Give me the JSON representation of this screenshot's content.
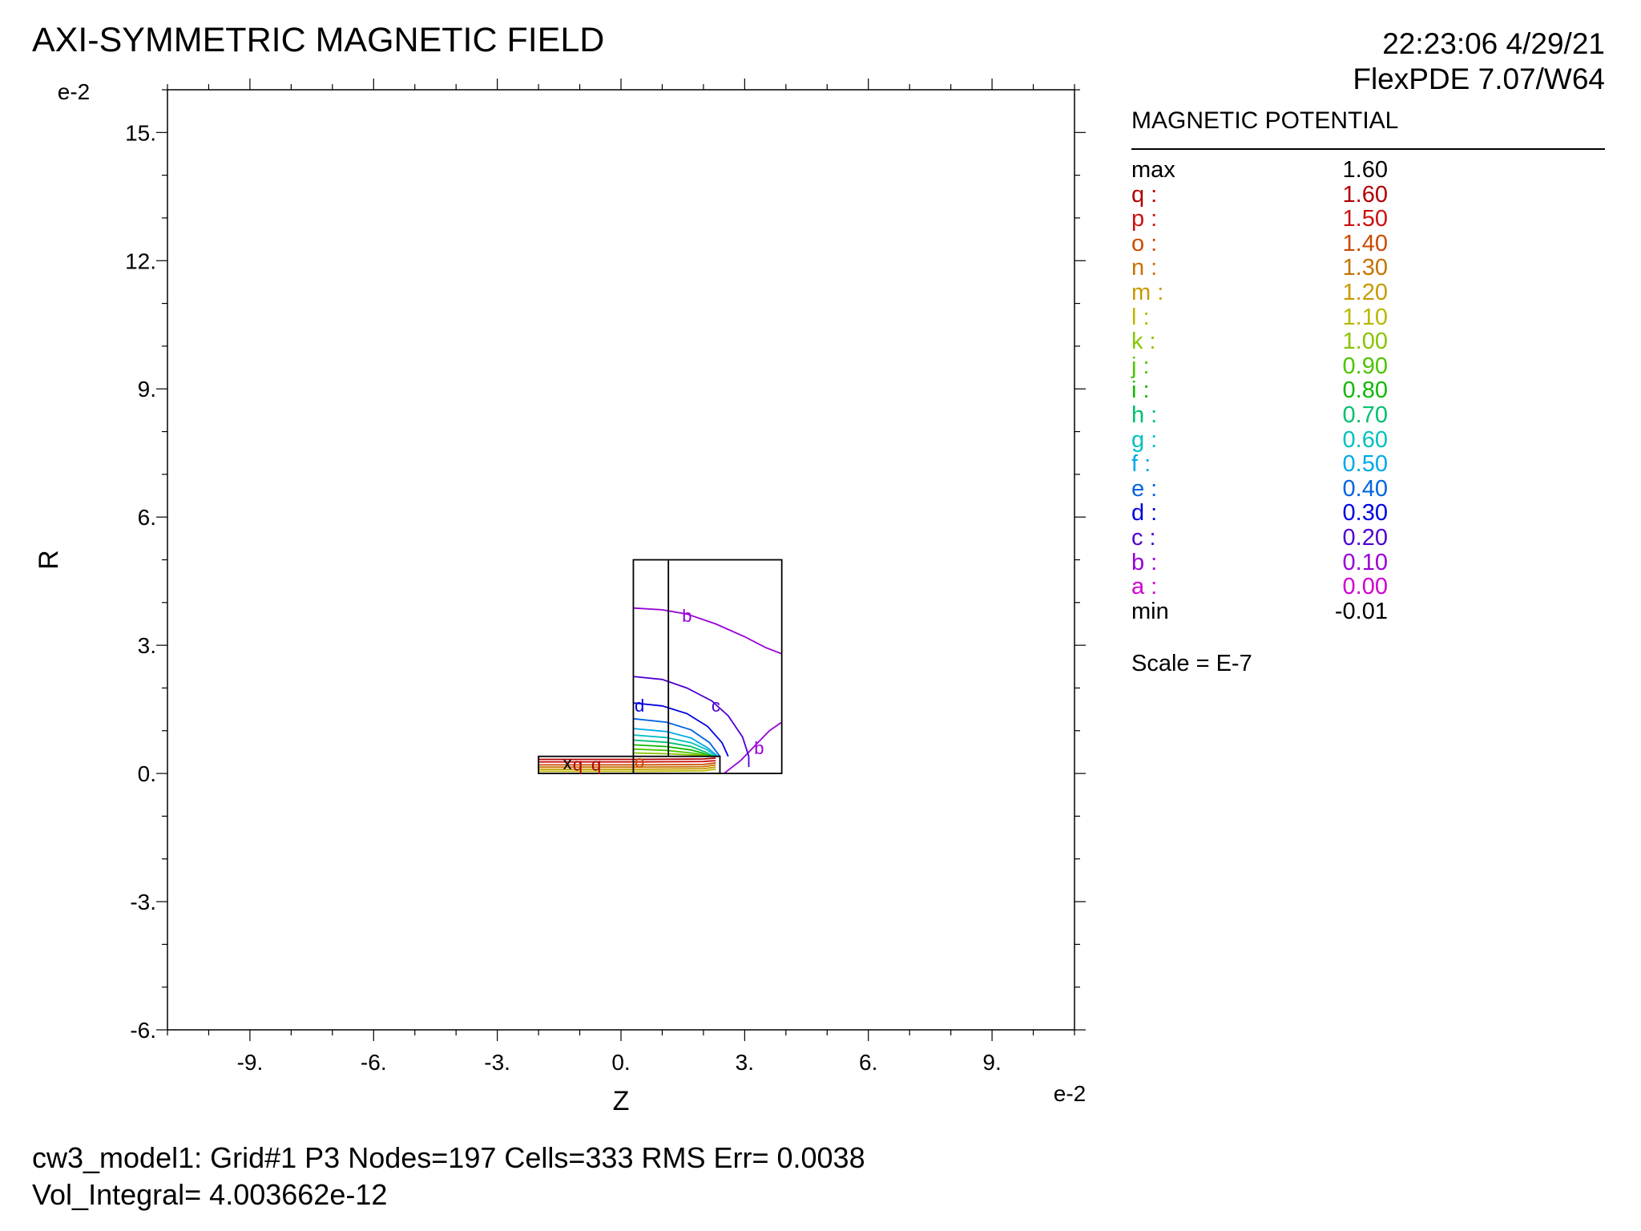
{
  "header": {
    "title": "AXI-SYMMETRIC MAGNETIC FIELD",
    "timestamp": "22:23:06 4/29/21",
    "software": "FlexPDE 7.07/W64"
  },
  "legend": {
    "title": "MAGNETIC POTENTIAL",
    "rows": [
      {
        "key": "max",
        "value": "1.60",
        "color": "#000000"
      },
      {
        "key": "q :",
        "value": "1.60",
        "color": "#b00000"
      },
      {
        "key": "p :",
        "value": "1.50",
        "color": "#cc1010"
      },
      {
        "key": "o :",
        "value": "1.40",
        "color": "#cc4a00"
      },
      {
        "key": "n :",
        "value": "1.30",
        "color": "#c67200"
      },
      {
        "key": "m :",
        "value": "1.20",
        "color": "#c89a00"
      },
      {
        "key": "l :",
        "value": "1.10",
        "color": "#b8b800"
      },
      {
        "key": "k :",
        "value": "1.00",
        "color": "#88c400"
      },
      {
        "key": "j :",
        "value": "0.90",
        "color": "#4cc400"
      },
      {
        "key": "i :",
        "value": "0.80",
        "color": "#10b800"
      },
      {
        "key": "h :",
        "value": "0.70",
        "color": "#00c070"
      },
      {
        "key": "g :",
        "value": "0.60",
        "color": "#00c0c0"
      },
      {
        "key": "f :",
        "value": "0.50",
        "color": "#00a8e8"
      },
      {
        "key": "e :",
        "value": "0.40",
        "color": "#0064e0"
      },
      {
        "key": "d :",
        "value": "0.30",
        "color": "#0000e0"
      },
      {
        "key": "c :",
        "value": "0.20",
        "color": "#5000d0"
      },
      {
        "key": "b :",
        "value": "0.10",
        "color": "#9800d8"
      },
      {
        "key": "a :",
        "value": "0.00",
        "color": "#d000d0"
      },
      {
        "key": "min",
        "value": "-0.01",
        "color": "#000000"
      }
    ],
    "scale_note": "Scale = E-7"
  },
  "footer": {
    "line1": "cw3_model1:  Grid#1  P3  Nodes=197 Cells=333 RMS Err= 0.0038",
    "line2": "Vol_Integral=  4.003662e-12"
  },
  "chart_data": {
    "type": "contour",
    "xlabel": "Z",
    "ylabel": "R",
    "x_multiplier_label": "e-2",
    "y_multiplier_label": "e-2",
    "xlim": [
      -11,
      11
    ],
    "ylim": [
      -6,
      16
    ],
    "x_ticks": [
      -9,
      -6,
      -3,
      0,
      3,
      6,
      9
    ],
    "x_tick_labels": [
      "-9.",
      "-6.",
      "-3.",
      "0.",
      "3.",
      "6.",
      "9."
    ],
    "y_ticks": [
      -6,
      -3,
      0,
      3,
      6,
      9,
      12,
      15
    ],
    "y_tick_labels": [
      "-6.",
      "-3.",
      "0.",
      "3.",
      "6.",
      "9.",
      "12.",
      "15."
    ],
    "grid": false,
    "domain_boxes": [
      {
        "z": [
          0.3,
          3.9
        ],
        "r": [
          0,
          5.0
        ]
      },
      {
        "z": [
          -2.0,
          2.4
        ],
        "r": [
          0,
          0.4
        ]
      },
      {
        "z": [
          1.15,
          1.15
        ],
        "r": [
          0.4,
          5.0
        ]
      }
    ],
    "contours": [
      {
        "label": "b",
        "level": 0.1,
        "points": [
          [
            0.3,
            3.87
          ],
          [
            1.0,
            3.83
          ],
          [
            1.6,
            3.73
          ],
          [
            2.3,
            3.5
          ],
          [
            3.0,
            3.2
          ],
          [
            3.5,
            2.95
          ],
          [
            3.9,
            2.8
          ]
        ]
      },
      {
        "label": "b",
        "level": 0.1,
        "points": [
          [
            2.5,
            0
          ],
          [
            2.9,
            0.3
          ],
          [
            3.3,
            0.7
          ],
          [
            3.6,
            1.0
          ],
          [
            3.9,
            1.2
          ]
        ]
      },
      {
        "label": "c",
        "level": 0.2,
        "points": [
          [
            0.3,
            2.27
          ],
          [
            1.0,
            2.2
          ],
          [
            1.6,
            2.0
          ],
          [
            2.2,
            1.7
          ],
          [
            2.6,
            1.35
          ],
          [
            2.95,
            0.85
          ],
          [
            3.1,
            0.4
          ],
          [
            3.1,
            0.15
          ]
        ]
      },
      {
        "label": "d",
        "level": 0.3,
        "points": [
          [
            0.3,
            1.65
          ],
          [
            1.0,
            1.58
          ],
          [
            1.6,
            1.4
          ],
          [
            2.1,
            1.1
          ],
          [
            2.45,
            0.72
          ],
          [
            2.6,
            0.4
          ]
        ]
      },
      {
        "label": "e",
        "level": 0.4,
        "points": [
          [
            0.3,
            1.28
          ],
          [
            1.1,
            1.2
          ],
          [
            1.7,
            1.02
          ],
          [
            2.15,
            0.72
          ],
          [
            2.4,
            0.4
          ]
        ]
      },
      {
        "label": "f",
        "level": 0.5,
        "points": [
          [
            0.3,
            1.05
          ],
          [
            1.1,
            0.98
          ],
          [
            1.7,
            0.83
          ],
          [
            2.1,
            0.6
          ],
          [
            2.35,
            0.4
          ]
        ]
      },
      {
        "label": "g",
        "level": 0.6,
        "points": [
          [
            0.3,
            0.9
          ],
          [
            1.1,
            0.84
          ],
          [
            1.7,
            0.72
          ],
          [
            2.1,
            0.55
          ],
          [
            2.3,
            0.4
          ]
        ]
      },
      {
        "label": "h",
        "level": 0.7,
        "points": [
          [
            0.3,
            0.78
          ],
          [
            1.1,
            0.73
          ],
          [
            1.7,
            0.63
          ],
          [
            2.05,
            0.5
          ],
          [
            2.25,
            0.4
          ]
        ]
      },
      {
        "label": "i",
        "level": 0.8,
        "points": [
          [
            0.3,
            0.67
          ],
          [
            1.1,
            0.63
          ],
          [
            1.7,
            0.55
          ],
          [
            2.0,
            0.47
          ],
          [
            2.2,
            0.4
          ]
        ]
      },
      {
        "label": "j",
        "level": 0.9,
        "points": [
          [
            0.3,
            0.57
          ],
          [
            1.1,
            0.54
          ],
          [
            1.7,
            0.48
          ],
          [
            2.05,
            0.43
          ],
          [
            2.15,
            0.4
          ]
        ]
      },
      {
        "label": "k",
        "level": 1.0,
        "points": [
          [
            0.3,
            0.48
          ],
          [
            1.2,
            0.46
          ],
          [
            1.8,
            0.43
          ],
          [
            2.1,
            0.4
          ]
        ]
      },
      {
        "label": "l",
        "level": 1.1,
        "points": [
          [
            -2.0,
            0.05
          ],
          [
            0.5,
            0.05
          ],
          [
            2.0,
            0.06
          ],
          [
            2.3,
            0.1
          ]
        ]
      },
      {
        "label": "m",
        "level": 1.2,
        "points": [
          [
            -2.0,
            0.1
          ],
          [
            0.5,
            0.1
          ],
          [
            2.0,
            0.11
          ],
          [
            2.3,
            0.15
          ]
        ]
      },
      {
        "label": "n",
        "level": 1.3,
        "points": [
          [
            -2.0,
            0.15
          ],
          [
            0.5,
            0.15
          ],
          [
            2.0,
            0.16
          ],
          [
            2.3,
            0.2
          ]
        ]
      },
      {
        "label": "o",
        "level": 1.4,
        "points": [
          [
            -2.0,
            0.2
          ],
          [
            0.5,
            0.2
          ],
          [
            2.0,
            0.21
          ],
          [
            2.3,
            0.25
          ]
        ]
      },
      {
        "label": "p",
        "level": 1.5,
        "points": [
          [
            -2.0,
            0.27
          ],
          [
            0.5,
            0.27
          ],
          [
            2.0,
            0.28
          ],
          [
            2.3,
            0.3
          ]
        ]
      },
      {
        "label": "q",
        "level": 1.6,
        "points": [
          [
            -2.0,
            0.33
          ],
          [
            0.5,
            0.33
          ],
          [
            2.0,
            0.34
          ],
          [
            2.3,
            0.36
          ]
        ]
      }
    ],
    "annotations": [
      {
        "text": "b",
        "z": 1.6,
        "r": 3.7,
        "color": "#9800d8"
      },
      {
        "text": "c",
        "z": 2.3,
        "r": 1.6,
        "color": "#5000d0"
      },
      {
        "text": "d",
        "z": 0.45,
        "r": 1.6,
        "color": "#0000e0"
      },
      {
        "text": "b",
        "z": 3.35,
        "r": 0.6,
        "color": "#9800d8"
      },
      {
        "text": "x",
        "z": -1.3,
        "r": 0.25,
        "color": "#000000"
      },
      {
        "text": "q",
        "z": -1.05,
        "r": 0.22,
        "color": "#b00000"
      },
      {
        "text": "q",
        "z": -0.6,
        "r": 0.22,
        "color": "#b00000"
      },
      {
        "text": "o",
        "z": 0.45,
        "r": 0.28,
        "color": "#cc4a00"
      }
    ]
  }
}
